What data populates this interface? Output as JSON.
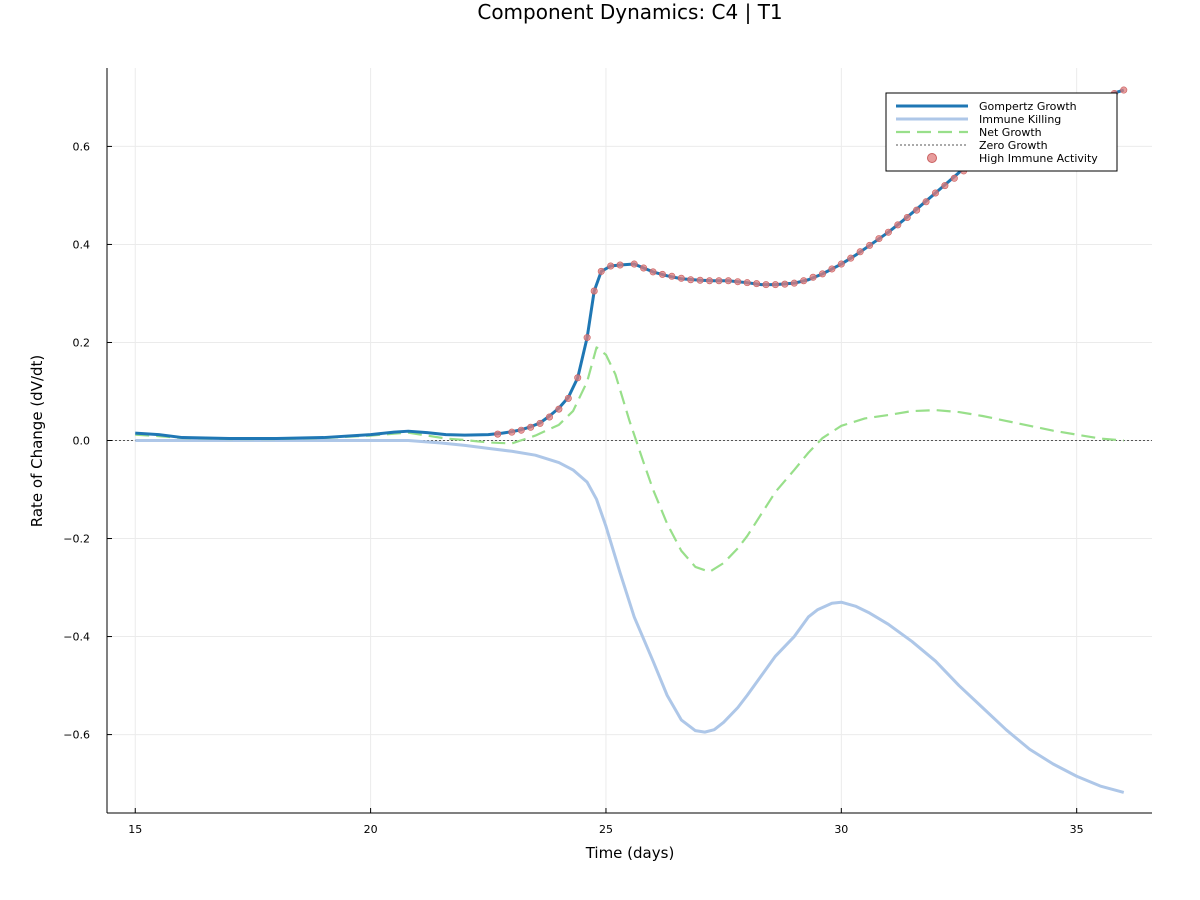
{
  "chart_data": {
    "type": "line",
    "title": "Component Dynamics: C4 | T1",
    "xlabel": "Time (days)",
    "ylabel": "Rate of Change (dV/dt)",
    "xlim": [
      14.4,
      36.6
    ],
    "ylim": [
      -0.76,
      0.76
    ],
    "xticks": [
      15,
      20,
      25,
      30,
      35
    ],
    "xtick_labels": [
      "15",
      "20",
      "25",
      "30",
      "35"
    ],
    "yticks": [
      -0.6,
      -0.4,
      -0.2,
      0.0,
      0.2,
      0.4,
      0.6
    ],
    "ytick_labels": [
      "−0.6",
      "−0.4",
      "−0.2",
      "0.0",
      "0.2",
      "0.4",
      "0.6"
    ],
    "grid": true,
    "legend_position": "top-right",
    "series": [
      {
        "name": "Gompertz Growth",
        "style": "solid",
        "color": "#1f77b4",
        "x": [
          15.0,
          15.5,
          16.0,
          17.0,
          18.0,
          19.0,
          20.0,
          20.5,
          20.8,
          21.2,
          21.6,
          22.0,
          22.5,
          22.8,
          23.0,
          23.2,
          23.4,
          23.6,
          23.8,
          24.0,
          24.2,
          24.4,
          24.6,
          24.75,
          24.9,
          25.1,
          25.3,
          25.6,
          25.8,
          26.0,
          26.3,
          26.6,
          27.0,
          27.3,
          27.6,
          28.0,
          28.3,
          28.6,
          29.0,
          29.3,
          29.6,
          30.0,
          30.3,
          30.6,
          31.0,
          31.3,
          31.6,
          32.0,
          32.3,
          32.6,
          33.0,
          33.5,
          34.0,
          34.5,
          35.0,
          35.5,
          36.0
        ],
        "y": [
          0.015,
          0.012,
          0.006,
          0.004,
          0.004,
          0.006,
          0.012,
          0.017,
          0.019,
          0.016,
          0.012,
          0.011,
          0.012,
          0.015,
          0.018,
          0.022,
          0.028,
          0.036,
          0.05,
          0.066,
          0.088,
          0.128,
          0.21,
          0.305,
          0.345,
          0.356,
          0.358,
          0.36,
          0.352,
          0.344,
          0.336,
          0.33,
          0.327,
          0.326,
          0.326,
          0.322,
          0.318,
          0.318,
          0.321,
          0.328,
          0.34,
          0.36,
          0.378,
          0.398,
          0.425,
          0.448,
          0.472,
          0.505,
          0.53,
          0.555,
          0.585,
          0.62,
          0.645,
          0.665,
          0.68,
          0.7,
          0.715
        ]
      },
      {
        "name": "Immune Killing",
        "style": "solid",
        "color": "#aec7e8",
        "x": [
          15.0,
          16.0,
          17.0,
          18.0,
          19.0,
          20.0,
          20.8,
          21.5,
          22.0,
          22.5,
          23.0,
          23.5,
          24.0,
          24.3,
          24.6,
          24.8,
          25.0,
          25.3,
          25.6,
          26.0,
          26.3,
          26.6,
          26.9,
          27.1,
          27.3,
          27.5,
          27.8,
          28.0,
          28.3,
          28.6,
          29.0,
          29.3,
          29.5,
          29.8,
          30.0,
          30.3,
          30.6,
          31.0,
          31.5,
          32.0,
          32.5,
          33.0,
          33.5,
          34.0,
          34.5,
          35.0,
          35.5,
          36.0
        ],
        "y": [
          0.0,
          0.0,
          0.0,
          0.0,
          0.0,
          0.0,
          0.0,
          -0.005,
          -0.01,
          -0.016,
          -0.022,
          -0.03,
          -0.045,
          -0.06,
          -0.085,
          -0.12,
          -0.175,
          -0.27,
          -0.36,
          -0.45,
          -0.52,
          -0.57,
          -0.592,
          -0.595,
          -0.59,
          -0.575,
          -0.545,
          -0.52,
          -0.48,
          -0.44,
          -0.4,
          -0.36,
          -0.345,
          -0.332,
          -0.33,
          -0.338,
          -0.352,
          -0.375,
          -0.41,
          -0.45,
          -0.5,
          -0.545,
          -0.59,
          -0.63,
          -0.66,
          -0.685,
          -0.705,
          -0.718
        ]
      },
      {
        "name": "Net Growth",
        "style": "dashed",
        "color": "#98df8a",
        "x": [
          15.0,
          15.5,
          16.0,
          17.0,
          18.0,
          19.0,
          20.0,
          20.5,
          20.8,
          21.2,
          21.6,
          22.0,
          22.5,
          23.0,
          23.5,
          24.0,
          24.3,
          24.6,
          24.8,
          25.0,
          25.2,
          25.5,
          25.8,
          26.0,
          26.3,
          26.6,
          26.9,
          27.2,
          27.5,
          27.8,
          28.0,
          28.3,
          28.6,
          29.0,
          29.3,
          29.6,
          30.0,
          30.5,
          31.0,
          31.5,
          32.0,
          32.5,
          33.0,
          33.5,
          34.0,
          34.5,
          35.0,
          35.5,
          36.0
        ],
        "y": [
          0.012,
          0.009,
          0.005,
          0.003,
          0.003,
          0.005,
          0.01,
          0.014,
          0.016,
          0.01,
          0.004,
          0.001,
          -0.004,
          -0.006,
          0.01,
          0.032,
          0.06,
          0.12,
          0.19,
          0.175,
          0.135,
          0.04,
          -0.045,
          -0.1,
          -0.17,
          -0.225,
          -0.258,
          -0.268,
          -0.25,
          -0.22,
          -0.195,
          -0.15,
          -0.105,
          -0.06,
          -0.025,
          0.005,
          0.03,
          0.045,
          0.052,
          0.06,
          0.062,
          0.058,
          0.05,
          0.04,
          0.03,
          0.02,
          0.012,
          0.004,
          0.0
        ]
      },
      {
        "name": "Zero Growth",
        "style": "dotted",
        "color": "#555555",
        "x": [
          14.4,
          36.6
        ],
        "y": [
          0.0,
          0.0
        ]
      },
      {
        "name": "High Immune Activity",
        "style": "scatter",
        "color": "#e07b7b",
        "x": [
          22.7,
          23.0,
          23.2,
          23.4,
          23.6,
          23.8,
          24.0,
          24.2,
          24.4,
          24.6,
          24.75,
          24.9,
          25.1,
          25.3,
          25.6,
          25.8,
          26.0,
          26.2,
          26.4,
          26.6,
          26.8,
          27.0,
          27.2,
          27.4,
          27.6,
          27.8,
          28.0,
          28.2,
          28.4,
          28.6,
          28.8,
          29.0,
          29.2,
          29.4,
          29.6,
          29.8,
          30.0,
          30.2,
          30.4,
          30.6,
          30.8,
          31.0,
          31.2,
          31.4,
          31.6,
          31.8,
          32.0,
          32.2,
          32.4,
          32.6,
          32.8,
          33.0,
          33.2,
          33.4,
          33.6,
          33.8,
          34.0,
          34.2,
          34.4,
          34.6,
          34.8,
          35.0,
          35.2,
          35.4,
          35.6,
          35.8,
          36.0
        ],
        "y": [
          0.013,
          0.017,
          0.021,
          0.027,
          0.035,
          0.048,
          0.064,
          0.086,
          0.128,
          0.21,
          0.305,
          0.345,
          0.356,
          0.358,
          0.36,
          0.352,
          0.344,
          0.339,
          0.335,
          0.331,
          0.328,
          0.327,
          0.326,
          0.326,
          0.326,
          0.324,
          0.322,
          0.32,
          0.318,
          0.318,
          0.319,
          0.321,
          0.326,
          0.333,
          0.34,
          0.35,
          0.36,
          0.372,
          0.385,
          0.398,
          0.412,
          0.425,
          0.44,
          0.455,
          0.47,
          0.487,
          0.505,
          0.52,
          0.535,
          0.55,
          0.565,
          0.58,
          0.593,
          0.605,
          0.617,
          0.628,
          0.638,
          0.647,
          0.655,
          0.662,
          0.669,
          0.676,
          0.684,
          0.692,
          0.7,
          0.708,
          0.715
        ]
      }
    ]
  }
}
